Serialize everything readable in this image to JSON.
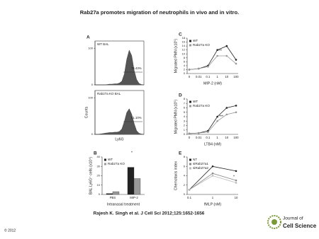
{
  "title": "Rab27a promotes migration of neutrophils in vivo and in vitro.",
  "citation": "Rajesh K. Singh et al. J Cell Sci 2012;125:1652-1656",
  "copyright": "© 2012",
  "logo": {
    "line1": "Journal of",
    "line2": "Cell Science"
  },
  "chart_data": [
    {
      "type": "area",
      "panel": "A",
      "title": "WT BAL",
      "annotation": "76.43%",
      "color": "#555",
      "x": [
        0,
        0.5,
        1,
        1.5,
        2,
        2.5,
        3,
        3.5,
        4,
        4.5,
        5,
        5.5,
        6,
        6.5,
        7,
        7.5,
        8,
        8.5,
        9,
        9.5,
        10
      ],
      "values": [
        0,
        0,
        0,
        0,
        0,
        1,
        2,
        2,
        3,
        3,
        5,
        10,
        30,
        70,
        95,
        80,
        40,
        15,
        4,
        1,
        0
      ],
      "xlim": [
        0,
        10
      ],
      "ylim": [
        0,
        120
      ],
      "yticks": [
        0,
        100
      ]
    },
    {
      "type": "area",
      "title": "Rab27a KO BAL",
      "annotation": "51.10%",
      "xlabel": "Ly6G",
      "ylabel": "Counts",
      "color": "#555",
      "x": [
        0,
        0.5,
        1,
        1.5,
        2,
        2.5,
        3,
        3.5,
        4,
        4.5,
        5,
        5.5,
        6,
        6.5,
        7,
        7.5,
        8,
        8.5,
        9,
        9.5,
        10
      ],
      "values": [
        0,
        0,
        1,
        2,
        3,
        4,
        5,
        5,
        6,
        6,
        8,
        15,
        35,
        60,
        70,
        55,
        30,
        10,
        3,
        1,
        0
      ],
      "xlim": [
        0,
        10
      ],
      "ylim": [
        0,
        120
      ],
      "yticks": [
        0,
        100
      ]
    },
    {
      "type": "line",
      "panel": "C",
      "ylabel": "Migrated PMN (x10⁵)",
      "xlabel": "MIP-2 (nM)",
      "annotation": "***",
      "categories": [
        "0",
        "0.01",
        "0.1",
        "1",
        "10",
        "100"
      ],
      "series": [
        {
          "name": "WT",
          "color": "#222",
          "values": [
            2,
            2.5,
            4,
            12,
            14,
            7
          ]
        },
        {
          "name": "Rab27a KO",
          "color": "#999",
          "values": [
            2,
            2.5,
            3.5,
            9,
            9,
            5
          ]
        }
      ],
      "ylim": [
        0,
        18
      ],
      "yticks": [
        0,
        2,
        4,
        6,
        8,
        10,
        12,
        14,
        16,
        18
      ]
    },
    {
      "type": "line",
      "panel": "D",
      "ylabel": "Migrated PMN (x10⁵)",
      "xlabel": "LTB4 (nM)",
      "annotation": "***",
      "categories": [
        "0",
        "0.01",
        "0.1",
        "1",
        "10",
        "100"
      ],
      "series": [
        {
          "name": "WT",
          "color": "#222",
          "values": [
            0.2,
            0.3,
            0.8,
            4,
            6,
            6.5
          ]
        },
        {
          "name": "Rab27a KO",
          "color": "#999",
          "values": [
            0.2,
            0.3,
            0.5,
            3,
            4.5,
            5
          ]
        }
      ],
      "ylim": [
        0,
        8
      ],
      "yticks": [
        0,
        1,
        2,
        3,
        4,
        5,
        6,
        7,
        8
      ]
    },
    {
      "type": "bar",
      "panel": "B",
      "ylabel": "BAL Ly6G⁺ cells (x10⁴)",
      "xlabel": "Intranasal treatment",
      "annotation": "*",
      "categories": [
        "PBS",
        "MIP-2"
      ],
      "series": [
        {
          "name": "WT",
          "color": "#222",
          "values": [
            1,
            29
          ]
        },
        {
          "name": "Rab27a KO",
          "color": "#999",
          "values": [
            3,
            17
          ]
        }
      ],
      "ylim": [
        0,
        40
      ],
      "yticks": [
        0,
        10,
        20,
        30,
        40
      ]
    },
    {
      "type": "line",
      "panel": "E",
      "ylabel": "Chemotaxis index",
      "xlabel": "fMLP (nM)",
      "annotation": "*",
      "categories": [
        "0.1",
        "1",
        "10"
      ],
      "series": [
        {
          "name": "NT",
          "color": "#222",
          "values": [
            1,
            6,
            5
          ]
        },
        {
          "name": "siRab27a1",
          "color": "#888",
          "values": [
            1,
            4.5,
            3
          ]
        },
        {
          "name": "siRab27a2",
          "color": "#bbb",
          "values": [
            1,
            4,
            2.5
          ]
        }
      ],
      "ylim": [
        0,
        8
      ],
      "yticks": [
        0,
        2,
        4,
        6,
        8
      ]
    }
  ]
}
